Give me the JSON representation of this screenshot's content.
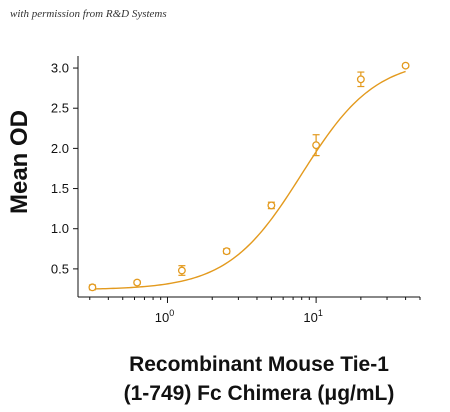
{
  "credit": "with permission from R&D Systems",
  "chart_data": {
    "type": "scatter",
    "curve": "4PL fit",
    "color": "#E39A1E",
    "ylabel": "Mean OD",
    "xlabel_lines": [
      "Recombinant Mouse Tie-1",
      "(1-749) Fc Chimera (μg/mL)"
    ],
    "xscale": "log",
    "xlim": [
      0.25,
      50
    ],
    "ylim": [
      0.15,
      3.15
    ],
    "yticks": [
      0.5,
      1.0,
      1.5,
      2.0,
      2.5,
      3.0
    ],
    "ytick_labels": [
      "0.5",
      "1.0",
      "1.5",
      "2.0",
      "2.5",
      "3.0"
    ],
    "xticks": [
      1,
      10
    ],
    "xtick_labels": [
      {
        "base": "10",
        "exp": "0"
      },
      {
        "base": "10",
        "exp": "1"
      }
    ],
    "points": [
      {
        "x": 0.3125,
        "y": 0.27,
        "err": 0.03
      },
      {
        "x": 0.625,
        "y": 0.33,
        "err": 0.02
      },
      {
        "x": 1.25,
        "y": 0.48,
        "err": 0.06
      },
      {
        "x": 2.5,
        "y": 0.72,
        "err": 0.03
      },
      {
        "x": 5,
        "y": 1.29,
        "err": 0.04
      },
      {
        "x": 10,
        "y": 2.04,
        "err": 0.13
      },
      {
        "x": 20,
        "y": 2.86,
        "err": 0.09
      },
      {
        "x": 40,
        "y": 3.03,
        "err": 0.02
      }
    ],
    "fit": {
      "bottom": 0.24,
      "top": 3.12,
      "ec50": 8.0,
      "hill": 1.75
    }
  }
}
